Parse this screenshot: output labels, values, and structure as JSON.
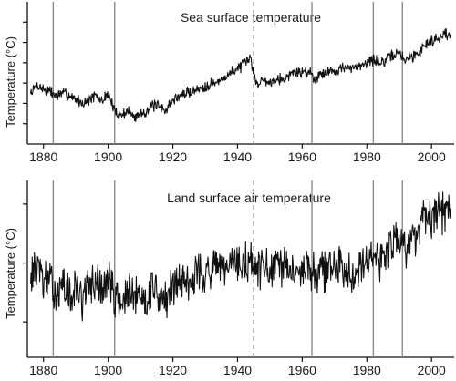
{
  "chart_data": [
    {
      "type": "line",
      "title": "Sea surface temperature",
      "ylabel": "Temperature (°C)",
      "xlabel": "",
      "xlim": [
        1875,
        2007
      ],
      "x_ticks": [
        1880,
        1900,
        1920,
        1940,
        1960,
        1980,
        2000
      ],
      "x_tick_labels": [
        "1880",
        "1900",
        "1920",
        "1940",
        "1960",
        "1980",
        "2000"
      ],
      "ylim": [
        -0.8,
        0.6
      ],
      "y_ticks": [
        -0.6,
        -0.4,
        -0.2,
        0,
        0.2,
        0.4
      ],
      "y_tick_labels": [],
      "grid": false,
      "vertical_lines": [
        {
          "x": 1883,
          "style": "solid"
        },
        {
          "x": 1902,
          "style": "solid"
        },
        {
          "x": 1945,
          "style": "dashed"
        },
        {
          "x": 1963,
          "style": "solid"
        },
        {
          "x": 1982,
          "style": "solid"
        },
        {
          "x": 1991,
          "style": "solid"
        }
      ],
      "series": [
        {
          "x": [
            1876,
            1878,
            1880,
            1882,
            1884,
            1886,
            1888,
            1890,
            1892,
            1894,
            1896,
            1898,
            1900,
            1902,
            1904,
            1906,
            1908,
            1910,
            1912,
            1914,
            1916,
            1918,
            1920,
            1922,
            1924,
            1926,
            1928,
            1930,
            1932,
            1934,
            1936,
            1938,
            1940,
            1942,
            1944,
            1946,
            1948,
            1950,
            1952,
            1954,
            1956,
            1958,
            1960,
            1962,
            1964,
            1966,
            1968,
            1970,
            1972,
            1974,
            1976,
            1978,
            1980,
            1982,
            1984,
            1986,
            1988,
            1990,
            1992,
            1994,
            1996,
            1998,
            2000,
            2002,
            2004,
            2006
          ],
          "y": [
            -0.3,
            -0.22,
            -0.26,
            -0.28,
            -0.33,
            -0.3,
            -0.32,
            -0.36,
            -0.4,
            -0.36,
            -0.33,
            -0.38,
            -0.3,
            -0.48,
            -0.52,
            -0.47,
            -0.54,
            -0.5,
            -0.47,
            -0.42,
            -0.44,
            -0.46,
            -0.37,
            -0.33,
            -0.3,
            -0.28,
            -0.26,
            -0.23,
            -0.2,
            -0.2,
            -0.14,
            -0.1,
            -0.05,
            -0.02,
            0.05,
            -0.22,
            -0.16,
            -0.2,
            -0.14,
            -0.17,
            -0.12,
            -0.09,
            -0.1,
            -0.08,
            -0.16,
            -0.1,
            -0.09,
            -0.08,
            -0.05,
            -0.06,
            -0.06,
            -0.02,
            0.01,
            0.03,
            0.0,
            0.02,
            0.08,
            0.09,
            0.03,
            0.06,
            0.1,
            0.18,
            0.22,
            0.24,
            0.29,
            0.25
          ]
        }
      ]
    },
    {
      "type": "line",
      "title": "Land surface air temperature",
      "ylabel": "Temperature (°C)",
      "xlabel": "",
      "xlim": [
        1875,
        2007
      ],
      "x_ticks": [
        1880,
        1900,
        1920,
        1940,
        1960,
        1980,
        2000
      ],
      "x_tick_labels": [
        "1880",
        "1900",
        "1920",
        "1940",
        "1960",
        "1980",
        "2000"
      ],
      "ylim": [
        -1.6,
        1.4
      ],
      "y_ticks": [
        -1.0,
        0.0,
        1.0
      ],
      "y_tick_labels": [],
      "grid": false,
      "vertical_lines": [
        {
          "x": 1883,
          "style": "solid"
        },
        {
          "x": 1902,
          "style": "solid"
        },
        {
          "x": 1945,
          "style": "dashed"
        },
        {
          "x": 1963,
          "style": "solid"
        },
        {
          "x": 1982,
          "style": "solid"
        },
        {
          "x": 1991,
          "style": "solid"
        }
      ],
      "series": [
        {
          "x": [
            1876,
            1878,
            1880,
            1882,
            1884,
            1886,
            1888,
            1890,
            1892,
            1894,
            1896,
            1898,
            1900,
            1902,
            1904,
            1906,
            1908,
            1910,
            1912,
            1914,
            1916,
            1918,
            1920,
            1922,
            1924,
            1926,
            1928,
            1930,
            1932,
            1934,
            1936,
            1938,
            1940,
            1942,
            1944,
            1946,
            1948,
            1950,
            1952,
            1954,
            1956,
            1958,
            1960,
            1962,
            1964,
            1966,
            1968,
            1970,
            1972,
            1974,
            1976,
            1978,
            1980,
            1982,
            1984,
            1986,
            1988,
            1990,
            1992,
            1994,
            1996,
            1998,
            2000,
            2002,
            2004,
            2006
          ],
          "y": [
            -0.2,
            -0.05,
            -0.3,
            -0.35,
            -0.5,
            -0.4,
            -0.55,
            -0.45,
            -0.6,
            -0.42,
            -0.3,
            -0.45,
            -0.25,
            -0.55,
            -0.7,
            -0.5,
            -0.62,
            -0.55,
            -0.6,
            -0.35,
            -0.55,
            -0.7,
            -0.35,
            -0.3,
            -0.28,
            -0.22,
            -0.15,
            -0.2,
            -0.1,
            -0.12,
            -0.18,
            -0.05,
            0.0,
            -0.05,
            0.05,
            -0.15,
            -0.05,
            -0.2,
            -0.05,
            -0.1,
            -0.15,
            -0.05,
            -0.1,
            -0.05,
            -0.2,
            -0.1,
            -0.12,
            -0.05,
            -0.1,
            -0.08,
            -0.15,
            0.0,
            0.1,
            0.15,
            0.05,
            0.2,
            0.35,
            0.45,
            0.3,
            0.4,
            0.5,
            0.75,
            0.65,
            0.8,
            0.9,
            0.95
          ]
        }
      ]
    }
  ]
}
